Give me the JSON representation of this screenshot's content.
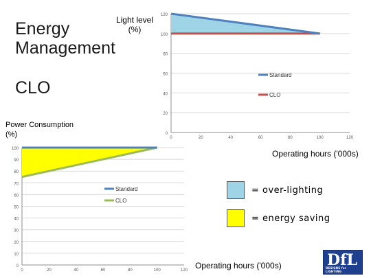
{
  "slide": {
    "title_line1": "Energy",
    "title_line2": "Management",
    "subtitle": "CLO",
    "light_caption_line1": "Light level",
    "light_caption_line2": "(%)",
    "power_caption_line1": "Power Consumption",
    "power_caption_line2": "(%)",
    "hours_caption_top": "Operating hours ('000s)",
    "hours_caption_bottom": "Operating hours ('000s)",
    "key": [
      {
        "label": "= over-lighting",
        "color": "#9fd3e6"
      },
      {
        "label": "= energy saving",
        "color": "#ffff00"
      }
    ],
    "logo_text": "DfL",
    "logo_subtext": "DESIGNS for LIGHTING"
  },
  "chart_data": [
    {
      "type": "area",
      "x": [
        0,
        20,
        40,
        60,
        80,
        100,
        120
      ],
      "xlim": [
        0,
        120
      ],
      "ylim": [
        0,
        120
      ],
      "yticks": [
        0,
        20,
        40,
        60,
        80,
        100,
        120
      ],
      "grid": true,
      "legend": "right",
      "series": [
        {
          "name": "Standard",
          "x": [
            0,
            100
          ],
          "y": [
            120,
            100
          ],
          "color": "#4f81bd"
        },
        {
          "name": "CLO",
          "x": [
            0,
            100
          ],
          "y": [
            100,
            100
          ],
          "color": "#c0504d"
        }
      ],
      "fill_between": {
        "upper": "Standard",
        "lower": "CLO",
        "color": "#9fd3e6"
      }
    },
    {
      "type": "area",
      "x": [
        0,
        20,
        40,
        60,
        80,
        100,
        120
      ],
      "xlim": [
        0,
        120
      ],
      "ylim": [
        0,
        100
      ],
      "yticks": [
        0,
        10,
        20,
        30,
        40,
        50,
        60,
        70,
        80,
        90,
        100
      ],
      "grid": true,
      "legend": "right",
      "series": [
        {
          "name": "Standard",
          "x": [
            0,
            100
          ],
          "y": [
            100,
            100
          ],
          "color": "#4f81bd"
        },
        {
          "name": "CLO",
          "x": [
            0,
            100
          ],
          "y": [
            75,
            100
          ],
          "color": "#9bbb59"
        }
      ],
      "fill_between": {
        "upper": "Standard",
        "lower": "CLO",
        "color": "#ffff00"
      }
    }
  ]
}
